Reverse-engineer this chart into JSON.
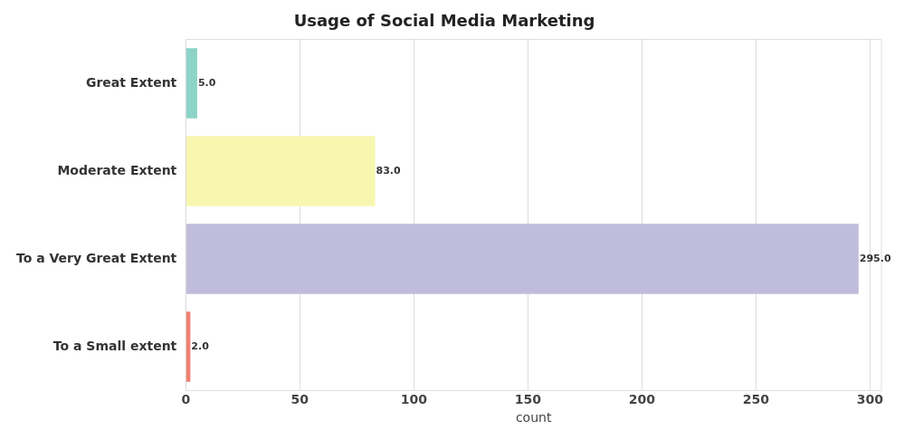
{
  "chart_data": {
    "type": "bar",
    "orientation": "horizontal",
    "title": "Usage of Social Media Marketing",
    "xlabel": "count",
    "categories": [
      "Great Extent",
      "Moderate Extent",
      "To a Very Great Extent",
      "To a Small extent"
    ],
    "values": [
      5,
      83,
      295,
      2
    ],
    "value_labels": [
      "5.0",
      "83.0",
      "295.0",
      "2.0"
    ],
    "colors": [
      "#8dd3c7",
      "#f7f7b0",
      "#c0bcdb",
      "#f08070"
    ],
    "xlim": [
      0,
      305
    ],
    "xticks": [
      0,
      50,
      100,
      150,
      200,
      250,
      300
    ],
    "grid": "x"
  }
}
